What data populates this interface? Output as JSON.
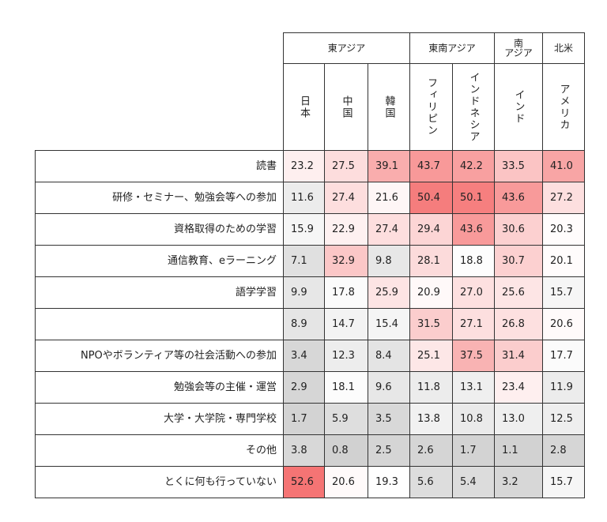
{
  "chart_data": {
    "type": "heatmap",
    "title": "",
    "regions": [
      {
        "label": "東アジア",
        "span": 3
      },
      {
        "label": "東南アジア",
        "span": 2
      },
      {
        "label": "南\nアジア",
        "span": 1
      },
      {
        "label": "北米",
        "span": 1
      }
    ],
    "columns": [
      "日本",
      "中国",
      "韓国",
      "フィリピン",
      "インドネシア",
      "インド",
      "アメリカ"
    ],
    "rows": [
      "読書",
      "研修・セミナー、勉強会等への参加",
      "資格取得のための学習",
      "通信教育、eラーニング",
      "語学学習",
      "",
      "NPOやボランティア等の社会活動への参加",
      "勉強会等の主催・運営",
      "大学・大学院・専門学校",
      "その他",
      "とくに何も行っていない"
    ],
    "values": [
      [
        23.2,
        27.5,
        39.1,
        43.7,
        42.2,
        33.5,
        41.0
      ],
      [
        11.6,
        27.4,
        21.6,
        50.4,
        50.1,
        43.6,
        27.2
      ],
      [
        15.9,
        22.9,
        27.4,
        29.4,
        43.6,
        30.6,
        20.3
      ],
      [
        7.1,
        32.9,
        9.8,
        28.1,
        18.8,
        30.7,
        20.1
      ],
      [
        9.9,
        17.8,
        25.9,
        20.9,
        27.0,
        25.6,
        15.7
      ],
      [
        8.9,
        14.7,
        15.4,
        31.5,
        27.1,
        26.8,
        20.6
      ],
      [
        3.4,
        12.3,
        8.4,
        25.1,
        37.5,
        31.4,
        17.7
      ],
      [
        2.9,
        18.1,
        9.6,
        11.8,
        13.1,
        23.4,
        11.9
      ],
      [
        1.7,
        5.9,
        3.5,
        13.8,
        10.8,
        13.0,
        12.5
      ],
      [
        3.8,
        0.8,
        2.5,
        2.6,
        1.7,
        1.1,
        2.8
      ],
      [
        52.6,
        20.6,
        19.3,
        5.6,
        5.4,
        3.2,
        15.7
      ]
    ],
    "value_format": "0.0",
    "colors": {
      "low": "#cfcfcf",
      "mid": "#ffffff",
      "high": "#f46a6a"
    },
    "color_range": [
      0,
      55
    ]
  }
}
